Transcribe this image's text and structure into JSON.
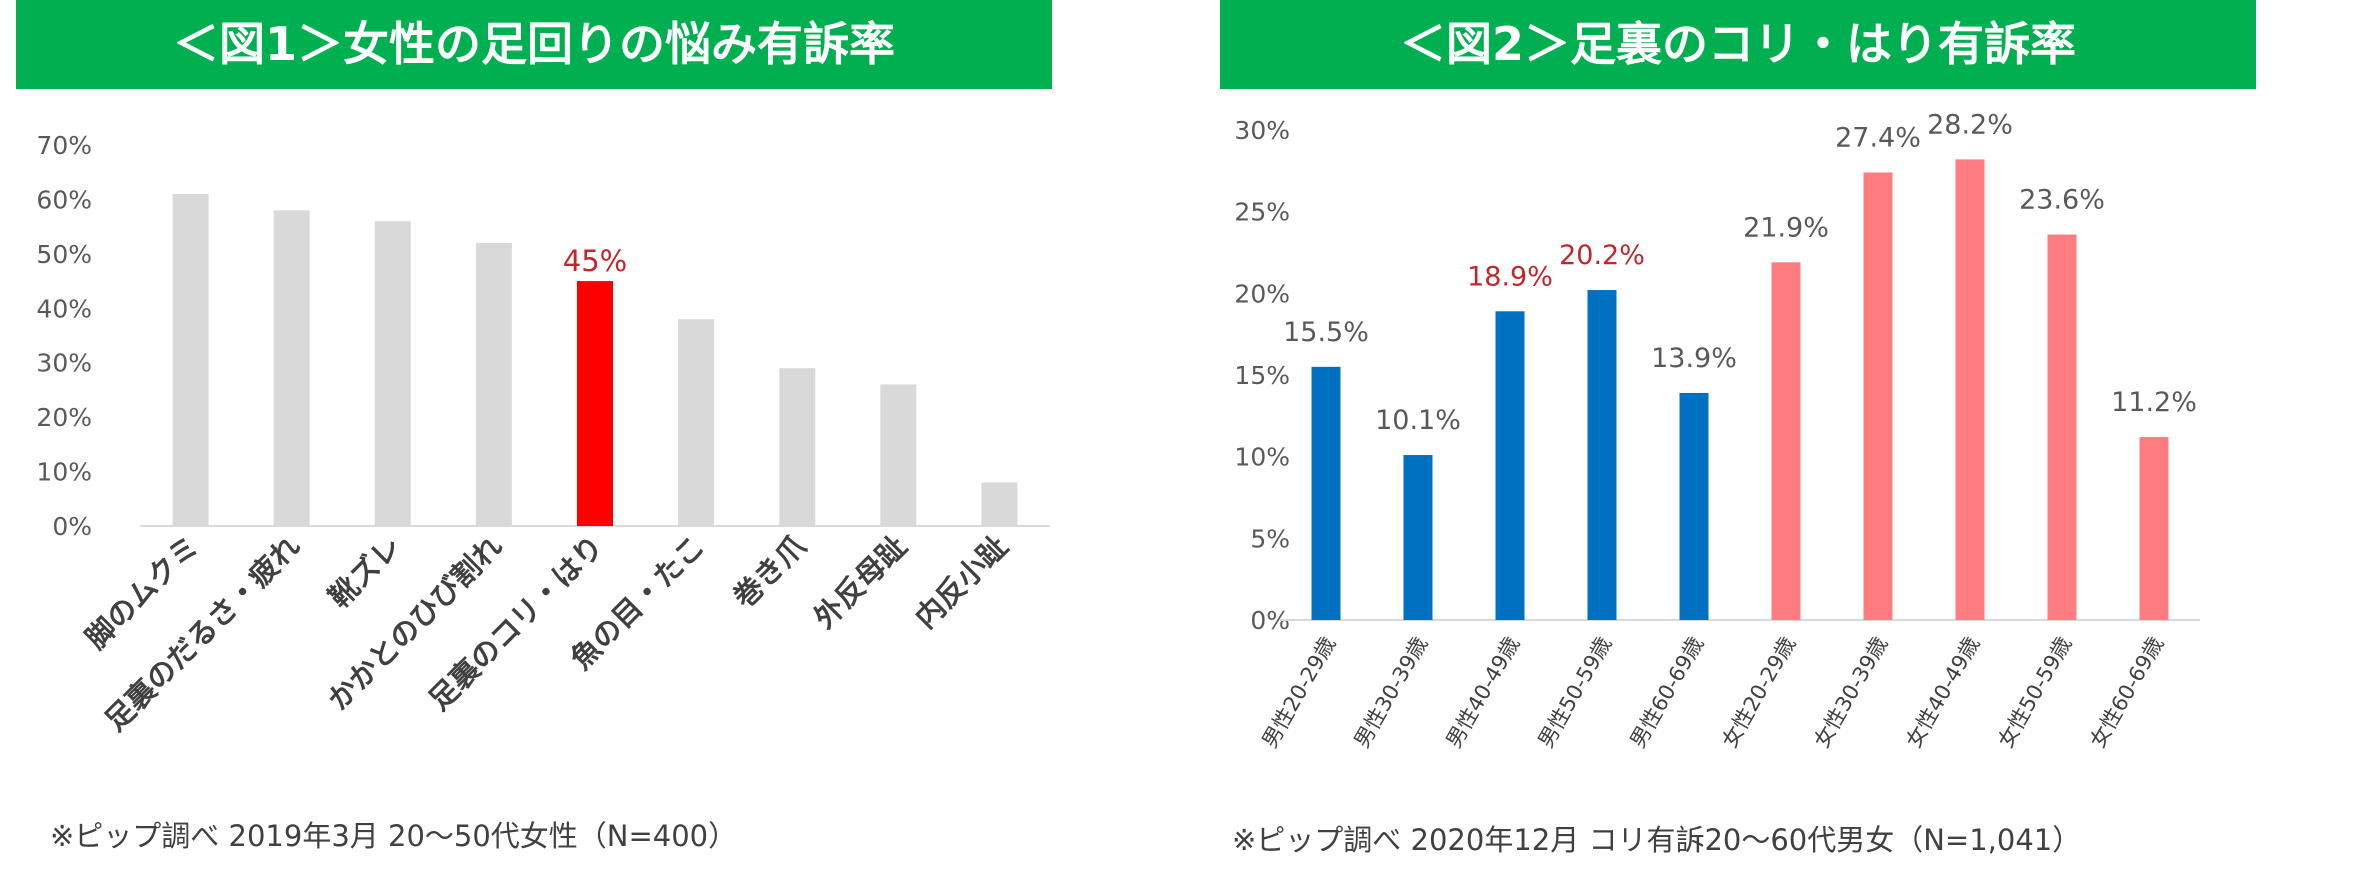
{
  "chart_data": [
    {
      "type": "bar",
      "title": "＜図1＞女性の足回りの悩み有訴率",
      "categories": [
        "脚のムクミ",
        "足裏のだるさ・疲れ",
        "靴ズレ",
        "かかとのひび割れ",
        "足裏のコリ・はり",
        "魚の目・たこ",
        "巻き爪",
        "外反母趾",
        "内反小趾"
      ],
      "values": [
        61,
        58,
        56,
        52,
        45,
        38,
        29,
        26,
        8
      ],
      "value_labels": [
        "",
        "",
        "",
        "",
        "45%",
        "",
        "",
        "",
        ""
      ],
      "ylim": [
        0,
        70
      ],
      "yticks": [
        "0%",
        "10%",
        "20%",
        "30%",
        "40%",
        "50%",
        "60%",
        "70%"
      ],
      "bar_colors": [
        "#d9d9d9",
        "#d9d9d9",
        "#d9d9d9",
        "#d9d9d9",
        "#ff0000",
        "#d9d9d9",
        "#d9d9d9",
        "#d9d9d9",
        "#d9d9d9"
      ],
      "label_colors": [
        "#595959",
        "#595959",
        "#595959",
        "#595959",
        "#c0272d",
        "#595959",
        "#595959",
        "#595959",
        "#595959"
      ],
      "grid": false,
      "note": "※ピップ調べ 2019年3月 20〜50代女性（N=400）"
    },
    {
      "type": "bar",
      "title": "＜図2＞足裏のコリ・はり有訴率",
      "categories": [
        "男性20-29歳",
        "男性30-39歳",
        "男性40-49歳",
        "男性50-59歳",
        "男性60-69歳",
        "女性20-29歳",
        "女性30-39歳",
        "女性40-49歳",
        "女性50-59歳",
        "女性60-69歳"
      ],
      "values": [
        15.5,
        10.1,
        18.9,
        20.2,
        13.9,
        21.9,
        27.4,
        28.2,
        23.6,
        11.2
      ],
      "value_labels": [
        "15.5%",
        "10.1%",
        "18.9%",
        "20.2%",
        "13.9%",
        "21.9%",
        "27.4%",
        "28.2%",
        "23.6%",
        "11.2%"
      ],
      "ylim": [
        0,
        30
      ],
      "yticks": [
        "0%",
        "5%",
        "10%",
        "15%",
        "20%",
        "25%",
        "30%"
      ],
      "bar_colors": [
        "#0070c0",
        "#0070c0",
        "#0070c0",
        "#0070c0",
        "#0070c0",
        "#ff7c80",
        "#ff7c80",
        "#ff7c80",
        "#ff7c80",
        "#ff7c80"
      ],
      "label_colors": [
        "#595959",
        "#595959",
        "#c0272d",
        "#c0272d",
        "#595959",
        "#595959",
        "#595959",
        "#595959",
        "#595959",
        "#595959"
      ],
      "grid": false,
      "note": "※ピップ調べ 2020年12月 コリ有訴20〜60代男女（N=1,041）"
    }
  ]
}
